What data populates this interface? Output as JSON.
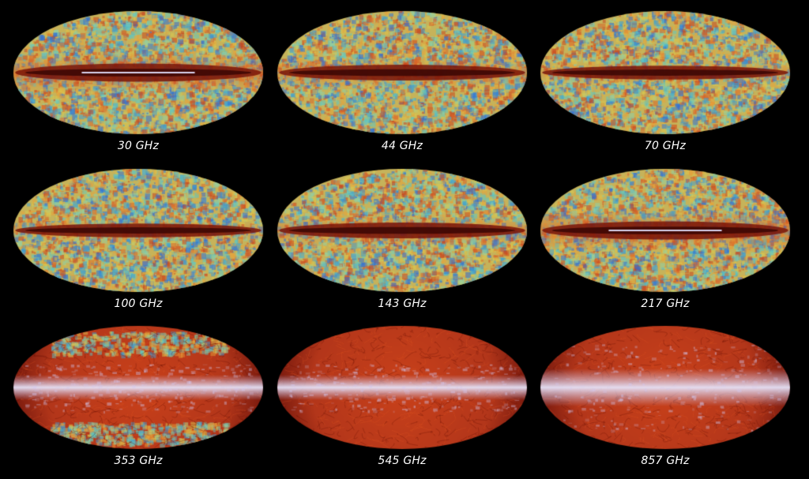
{
  "figure": {
    "background": "#000000",
    "label_color": "#ffffff",
    "maps": [
      {
        "label": "30 GHz",
        "style": "cmb",
        "band": "strong"
      },
      {
        "label": "44 GHz",
        "style": "cmb",
        "band": "medium"
      },
      {
        "label": "70 GHz",
        "style": "cmb",
        "band": "weak"
      },
      {
        "label": "100 GHz",
        "style": "cmb",
        "band": "weak"
      },
      {
        "label": "143 GHz",
        "style": "cmb",
        "band": "medium"
      },
      {
        "label": "217 GHz",
        "style": "cmb",
        "band": "strong"
      },
      {
        "label": "353 GHz",
        "style": "dust-mixed",
        "band": "bright"
      },
      {
        "label": "545 GHz",
        "style": "dust",
        "band": "bright"
      },
      {
        "label": "857 GHz",
        "style": "dust",
        "band": "very-bright"
      }
    ]
  }
}
